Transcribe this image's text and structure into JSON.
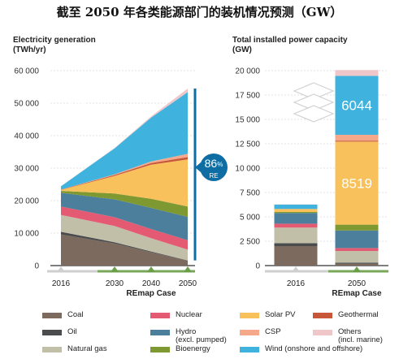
{
  "title": "截至 2050 年各类能源部门的装机情况预测（GW）",
  "chart_data": [
    {
      "type": "area",
      "title": "Electricity generation",
      "unit": "(TWh/yr)",
      "x": [
        "2016",
        "2030",
        "2040",
        "2050"
      ],
      "xlabel": "REmap Case",
      "ylim": [
        0,
        60000
      ],
      "yticks": [
        "0",
        "10 000",
        "20 000",
        "30 000",
        "40 000",
        "50 000",
        "60 000"
      ],
      "series": [
        {
          "name": "Coal",
          "values": [
            9600,
            6800,
            4100,
            1500
          ]
        },
        {
          "name": "Oil",
          "values": [
            800,
            400,
            250,
            100
          ]
        },
        {
          "name": "Natural gas",
          "values": [
            5200,
            5000,
            4100,
            3300
          ]
        },
        {
          "name": "Nuclear",
          "values": [
            2600,
            2700,
            2800,
            2900
          ]
        },
        {
          "name": "Hydro (excl. pumped)",
          "values": [
            4200,
            5500,
            6500,
            7200
          ]
        },
        {
          "name": "Bioenergy",
          "values": [
            600,
            1800,
            2800,
            3200
          ]
        },
        {
          "name": "Solar PV",
          "values": [
            300,
            5400,
            10500,
            14500
          ]
        },
        {
          "name": "Geothermal",
          "values": [
            100,
            300,
            500,
            700
          ]
        },
        {
          "name": "CSP",
          "values": [
            20,
            200,
            500,
            1000
          ]
        },
        {
          "name": "Wind (onshore and offshore)",
          "values": [
            1000,
            8000,
            13500,
            19000
          ]
        },
        {
          "name": "Others (incl. marine)",
          "values": [
            10,
            100,
            400,
            1100
          ]
        }
      ],
      "annotation": {
        "value": "86",
        "unit": "%",
        "label": "RE"
      }
    },
    {
      "type": "bar",
      "stacked": true,
      "title": "Total installed power capacity",
      "unit": "(GW)",
      "categories": [
        "2016",
        "2050"
      ],
      "xlabel": "REmap Case",
      "ylim": [
        0,
        20000
      ],
      "yticks": [
        "0",
        "2 500",
        "5 000",
        "7 500",
        "10 000",
        "12 500",
        "15 000",
        "17 500",
        "20 000"
      ],
      "series": [
        {
          "name": "Coal",
          "values": [
            2000,
            200
          ]
        },
        {
          "name": "Oil",
          "values": [
            300,
            100
          ]
        },
        {
          "name": "Natural gas",
          "values": [
            1600,
            1200
          ]
        },
        {
          "name": "Nuclear",
          "values": [
            400,
            300
          ]
        },
        {
          "name": "Hydro (excl. pumped)",
          "values": [
            1100,
            1800
          ]
        },
        {
          "name": "Bioenergy",
          "values": [
            100,
            600
          ]
        },
        {
          "name": "Solar PV",
          "values": [
            300,
            8519
          ]
        },
        {
          "name": "Geothermal",
          "values": [
            10,
            100
          ]
        },
        {
          "name": "CSP",
          "values": [
            5,
            600
          ]
        },
        {
          "name": "Wind (onshore and offshore)",
          "values": [
            450,
            6044
          ]
        },
        {
          "name": "Others (incl. marine)",
          "values": [
            20,
            600
          ]
        }
      ],
      "data_labels": {
        "Solar PV 2050": "8519",
        "Wind 2050": "6044"
      }
    }
  ],
  "legend": [
    {
      "name": "Coal",
      "color": "#7b6a5d"
    },
    {
      "name": "Nuclear",
      "color": "#e35a72"
    },
    {
      "name": "Solar PV",
      "color": "#f8c15c"
    },
    {
      "name": "Geothermal",
      "color": "#c8573a"
    },
    {
      "name": "Oil",
      "color": "#4a4c4e"
    },
    {
      "name": "Hydro\n(excl. pumped)",
      "color": "#4c7f9c"
    },
    {
      "name": "CSP",
      "color": "#f5a98a"
    },
    {
      "name": "Others\n(incl. marine)",
      "color": "#f0c7c9"
    },
    {
      "name": "Natural gas",
      "color": "#c2bfa9"
    },
    {
      "name": "Bioenergy",
      "color": "#7e9832"
    },
    {
      "name": "Wind (onshore and offshore)",
      "color": "#3fb3de"
    }
  ],
  "colors": {
    "coal": "#7b6a5d",
    "oil": "#4a4c4e",
    "gas": "#c2bfa9",
    "nuclear": "#e35a72",
    "hydro": "#4c7f9c",
    "bio": "#7e9832",
    "solar": "#f8c15c",
    "geo": "#c8573a",
    "csp": "#f5a98a",
    "wind": "#3fb3de",
    "others": "#f0c7c9",
    "accent": "#0e6ea3"
  },
  "icons": [
    "lightning-icon",
    "stacked-layers-icon"
  ]
}
